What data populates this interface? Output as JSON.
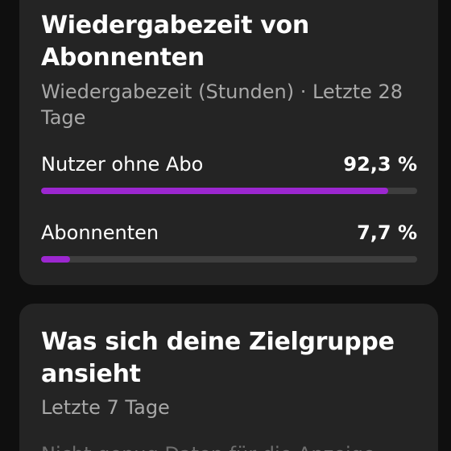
{
  "watchtime_card": {
    "title": "Wiedergabezeit von Abonnenten",
    "subtitle": "Wiedergabezeit (Stunden) · Letzte 28 Tage",
    "accent_color": "#9c27d0",
    "rows": [
      {
        "label": "Nutzer ohne Abo",
        "value_text": "92,3 %",
        "percent": 92.3
      },
      {
        "label": "Abonnenten",
        "value_text": "7,7 %",
        "percent": 7.7
      }
    ]
  },
  "audience_card": {
    "title": "Was sich deine Zielgruppe ansieht",
    "subtitle": "Letzte 7 Tage",
    "notice": "Nicht genug Daten für die Anzeige"
  }
}
